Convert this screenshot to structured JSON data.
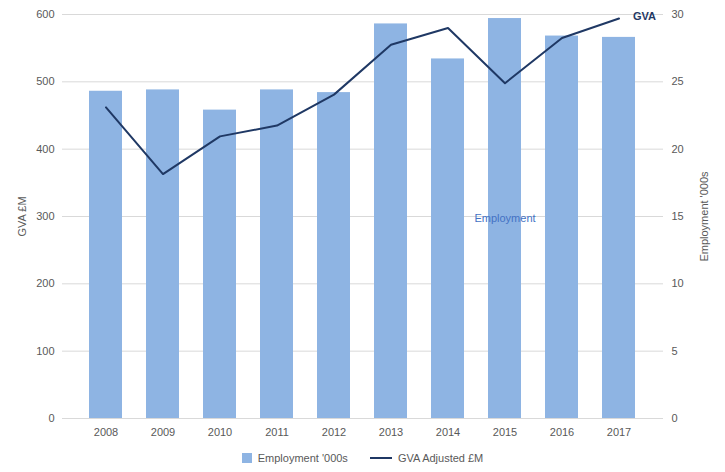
{
  "chart_data": {
    "type": "bar",
    "categories": [
      "2008",
      "2009",
      "2010",
      "2011",
      "2012",
      "2013",
      "2014",
      "2015",
      "2016",
      "2017"
    ],
    "series": [
      {
        "name": "Employment '000s",
        "type": "bar",
        "axis": "y2",
        "color": "#8eb4e3",
        "values": [
          24.3,
          24.4,
          22.9,
          24.4,
          24.2,
          29.3,
          26.7,
          29.7,
          28.4,
          28.3
        ]
      },
      {
        "name": "GVA Adjusted £M",
        "type": "line",
        "color": "#1f3864",
        "values": [
          462,
          363,
          419,
          435,
          481,
          555,
          580,
          498,
          565,
          594
        ]
      }
    ],
    "ylabel": "GVA £M",
    "y2label": "Employment '000s",
    "ylim": [
      0,
      600
    ],
    "yticks": [
      0,
      100,
      200,
      300,
      400,
      500,
      600
    ],
    "y2lim": [
      0,
      30
    ],
    "y2ticks": [
      0,
      5,
      10,
      15,
      20,
      25,
      30
    ],
    "annotations": [
      "GVA",
      "Employment"
    ],
    "grid": true,
    "legend": "bottom"
  }
}
